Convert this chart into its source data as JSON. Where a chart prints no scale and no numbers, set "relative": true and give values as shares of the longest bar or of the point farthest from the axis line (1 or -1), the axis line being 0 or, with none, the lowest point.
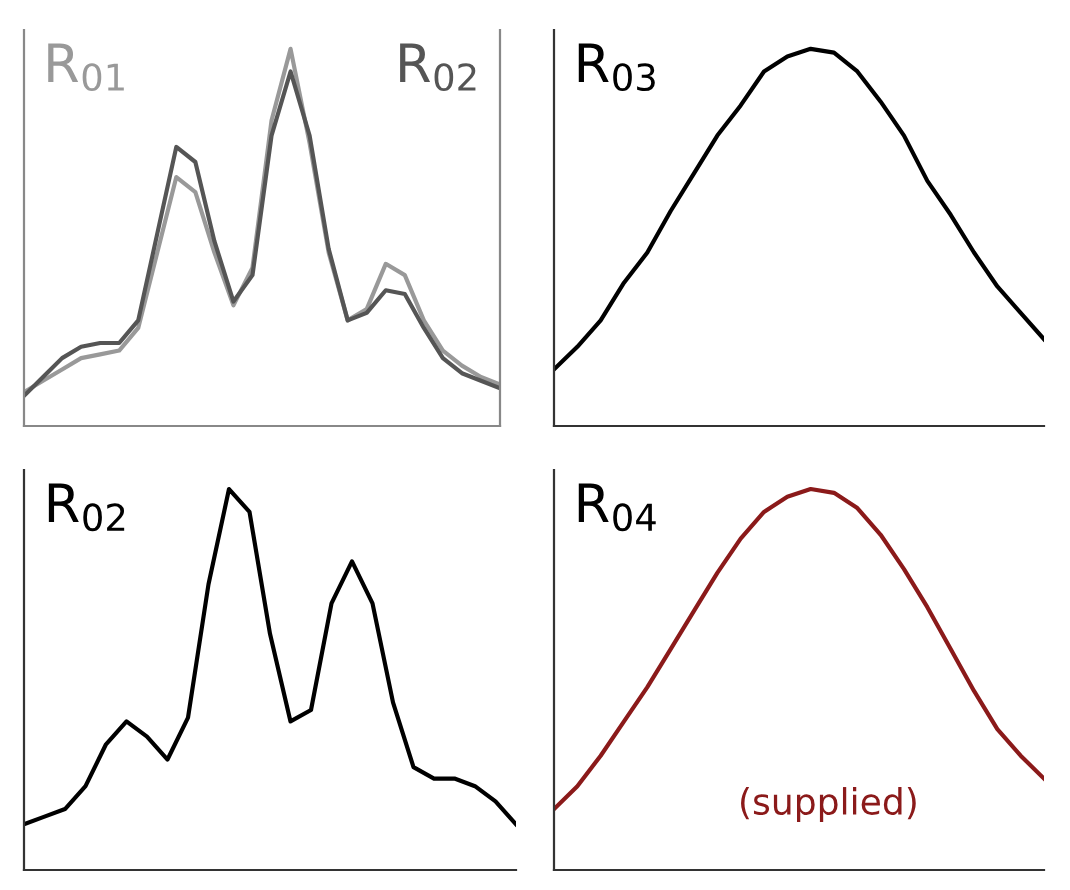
{
  "chart_data": [
    {
      "type": "line",
      "relative": true,
      "categories": [
        null,
        null,
        null,
        null,
        null,
        null,
        null,
        null,
        null,
        null,
        null,
        null,
        null,
        null,
        null,
        null,
        null,
        null,
        null,
        null,
        null,
        null,
        null,
        null,
        null,
        null
      ],
      "series": [
        {
          "name": "R$_{01}$",
          "color": "#999999",
          "values": [
            0.09,
            0.12,
            0.15,
            0.18,
            0.19,
            0.2,
            0.26,
            0.46,
            0.66,
            0.62,
            0.46,
            0.32,
            0.42,
            0.81,
            1.0,
            0.75,
            0.46,
            0.28,
            0.31,
            0.43,
            0.4,
            0.28,
            0.2,
            0.16,
            0.13,
            0.11
          ]
        },
        {
          "name": "R$_{02}$",
          "color": "#555555",
          "values": [
            0.08,
            0.13,
            0.18,
            0.21,
            0.22,
            0.22,
            0.28,
            0.51,
            0.74,
            0.7,
            0.49,
            0.33,
            0.4,
            0.77,
            0.94,
            0.77,
            0.47,
            0.28,
            0.3,
            0.36,
            0.35,
            0.26,
            0.18,
            0.14,
            0.12,
            0.1
          ]
        }
      ]
    },
    {
      "type": "line",
      "relative": true,
      "title": "R$_{03}$",
      "categories": [
        null,
        null,
        null,
        null,
        null,
        null,
        null,
        null,
        null,
        null,
        null,
        null,
        null,
        null,
        null,
        null,
        null,
        null,
        null,
        null,
        null,
        null
      ],
      "series": [
        {
          "color": "#000000",
          "values": [
            0.15,
            0.21,
            0.28,
            0.38,
            0.46,
            0.57,
            0.67,
            0.77,
            0.85,
            0.94,
            0.98,
            1.0,
            0.99,
            0.94,
            0.86,
            0.77,
            0.65,
            0.56,
            0.46,
            0.37,
            0.3,
            0.23
          ]
        }
      ]
    },
    {
      "type": "line",
      "relative": true,
      "title": "R$_{02}$",
      "categories": [
        null,
        null,
        null,
        null,
        null,
        null,
        null,
        null,
        null,
        null,
        null,
        null,
        null,
        null,
        null,
        null,
        null,
        null,
        null,
        null,
        null,
        null,
        null,
        null,
        null
      ],
      "series": [
        {
          "color": "#000000",
          "values": [
            0.12,
            0.14,
            0.16,
            0.22,
            0.33,
            0.39,
            0.35,
            0.29,
            0.4,
            0.75,
            1.0,
            0.94,
            0.62,
            0.39,
            0.42,
            0.7,
            0.81,
            0.7,
            0.44,
            0.27,
            0.24,
            0.24,
            0.22,
            0.18,
            0.12
          ]
        }
      ]
    },
    {
      "type": "line",
      "relative": true,
      "title": "R$_{04}$",
      "annotations": [
        "(supplied)"
      ],
      "categories": [
        null,
        null,
        null,
        null,
        null,
        null,
        null,
        null,
        null,
        null,
        null,
        null,
        null,
        null,
        null,
        null,
        null,
        null,
        null,
        null,
        null,
        null
      ],
      "series": [
        {
          "color": "#8b1a1a",
          "values": [
            0.16,
            0.22,
            0.3,
            0.39,
            0.48,
            0.58,
            0.68,
            0.78,
            0.87,
            0.94,
            0.98,
            1.0,
            0.99,
            0.95,
            0.88,
            0.79,
            0.69,
            0.58,
            0.47,
            0.37,
            0.3,
            0.24
          ]
        }
      ]
    }
  ]
}
